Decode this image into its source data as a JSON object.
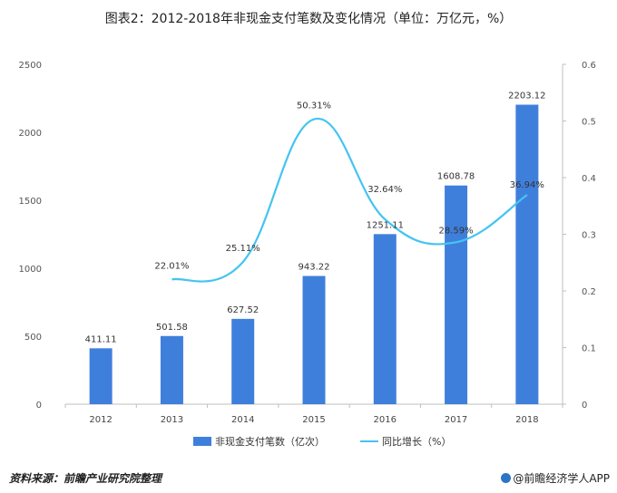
{
  "chart_data": {
    "type": "bar+line",
    "title": "图表2：2012-2018年非现金支付笔数及变化情况（单位：万亿元，%）",
    "categories": [
      "2012",
      "2013",
      "2014",
      "2015",
      "2016",
      "2017",
      "2018"
    ],
    "series": [
      {
        "name": "非现金支付笔数（亿次）",
        "type": "bar",
        "axis": "left",
        "values": [
          411.11,
          501.58,
          627.52,
          943.22,
          1251.11,
          1608.78,
          2203.12
        ],
        "labels": [
          "411.11",
          "501.58",
          "627.52",
          "943.22",
          "1251.11",
          "1608.78",
          "2203.12"
        ],
        "color": "#3f7fdc"
      },
      {
        "name": "同比增长（%）",
        "type": "line",
        "axis": "right",
        "values": [
          null,
          0.2201,
          0.2511,
          0.5031,
          0.3264,
          0.2859,
          0.3694
        ],
        "labels": [
          "",
          "22.01%",
          "25.11%",
          "50.31%",
          "32.64%",
          "28.59%",
          "36.94%"
        ],
        "color": "#45c4f0"
      }
    ],
    "y_left": {
      "min": 0,
      "max": 2500,
      "ticks": [
        "0",
        "500",
        "1000",
        "1500",
        "2000",
        "2500"
      ]
    },
    "y_right": {
      "min": 0,
      "max": 0.6,
      "ticks": [
        "0",
        "0.1",
        "0.2",
        "0.3",
        "0.4",
        "0.5",
        "0.6"
      ]
    },
    "grid": false,
    "legend_position": "bottom"
  },
  "footer": {
    "source": "资料来源：前瞻产业研究院整理",
    "brand": "@前瞻经济学人APP"
  }
}
